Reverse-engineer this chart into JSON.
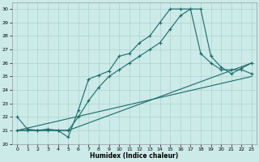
{
  "xlabel": "Humidex (Indice chaleur)",
  "background_color": "#cceae8",
  "grid_color": "#aad4d0",
  "line_color": "#1a6b6b",
  "xlim": [
    -0.5,
    23.5
  ],
  "ylim": [
    20,
    30.5
  ],
  "xticks": [
    0,
    1,
    2,
    3,
    4,
    5,
    6,
    7,
    8,
    9,
    10,
    11,
    12,
    13,
    14,
    15,
    16,
    17,
    18,
    19,
    20,
    21,
    22,
    23
  ],
  "yticks": [
    20,
    21,
    22,
    23,
    24,
    25,
    26,
    27,
    28,
    29,
    30
  ],
  "line1_x": [
    0,
    1,
    2,
    3,
    4,
    5,
    6,
    7,
    8,
    9,
    10,
    11,
    12,
    13,
    14,
    15,
    16,
    17,
    18,
    19,
    20,
    21,
    22,
    23
  ],
  "line1_y": [
    22,
    21.1,
    21.0,
    21.1,
    21.0,
    20.5,
    22.5,
    24.8,
    25.1,
    25.4,
    26.5,
    26.7,
    27.5,
    28.0,
    29.0,
    30.0,
    30.0,
    30.0,
    26.7,
    26.0,
    25.5,
    25.5,
    25.5,
    25.2
  ],
  "line2_x": [
    0,
    1,
    2,
    3,
    4,
    5,
    6,
    7,
    8,
    9,
    10,
    11,
    12,
    13,
    14,
    15,
    16,
    17,
    18,
    19,
    20,
    21,
    22,
    23
  ],
  "line2_y": [
    21.0,
    21.0,
    21.0,
    21.0,
    21.0,
    21.0,
    22.0,
    23.2,
    24.2,
    25.0,
    25.5,
    26.0,
    26.5,
    27.0,
    27.5,
    28.5,
    29.5,
    30.0,
    30.0,
    26.5,
    25.7,
    25.2,
    25.6,
    26.0
  ],
  "line3_x": [
    0,
    23
  ],
  "line3_y": [
    21.0,
    25.0
  ],
  "line4_x": [
    0,
    5,
    23
  ],
  "line4_y": [
    21.0,
    21.0,
    26.0
  ]
}
